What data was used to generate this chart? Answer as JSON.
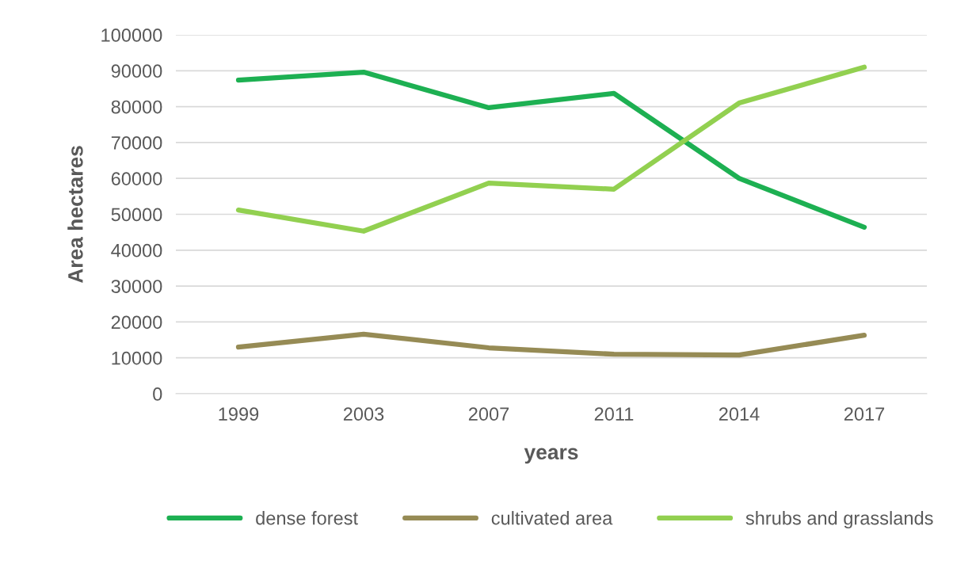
{
  "chart_data": {
    "type": "line",
    "xlabel": "years",
    "ylabel": "Area hectares",
    "categories": [
      "1999",
      "2003",
      "2007",
      "2011",
      "2014",
      "2017"
    ],
    "series": [
      {
        "name": "dense forest",
        "color": "#1db052",
        "values": [
          87400,
          89600,
          79700,
          83700,
          60000,
          46400
        ]
      },
      {
        "name": "cultivated area",
        "color": "#968b55",
        "values": [
          13000,
          16600,
          12800,
          11000,
          10800,
          16300
        ]
      },
      {
        "name": "shrubs and grasslands",
        "color": "#92d050",
        "values": [
          51200,
          45300,
          58700,
          57000,
          81000,
          91000
        ]
      }
    ],
    "ylim": [
      0,
      100000
    ],
    "yticks": [
      0,
      10000,
      20000,
      30000,
      40000,
      50000,
      60000,
      70000,
      80000,
      90000,
      100000
    ],
    "grid": "y",
    "legend": "bottom",
    "marker": "none",
    "line_style": "solid"
  }
}
